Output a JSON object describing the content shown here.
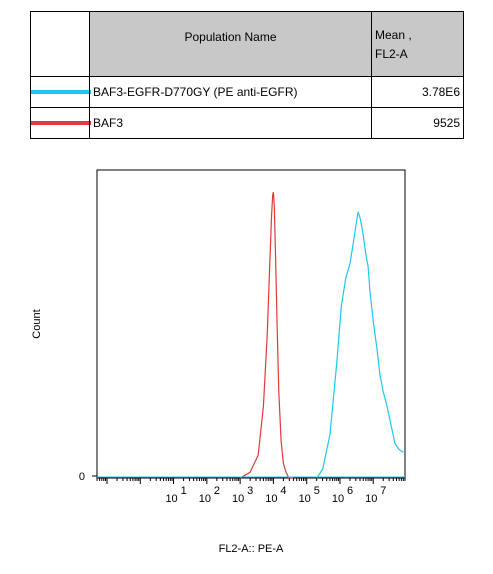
{
  "legend": {
    "header": {
      "name": "Population Name",
      "mean": "Mean ,\nFL2-A"
    },
    "rows": [
      {
        "color": "#1ec8f0",
        "name": "BAF3-EGFR-D770GY (PE anti-EGFR)",
        "mean": "3.78E6"
      },
      {
        "color": "#e03a3a",
        "name": "BAF3",
        "mean": "9525"
      }
    ]
  },
  "chart_data": {
    "type": "line",
    "xlabel": "FL2-A:: PE-A",
    "ylabel": "Count",
    "x_scale": "log10",
    "xlim": [
      0.05,
      90000000
    ],
    "x_ticks": [
      {
        "base": "10",
        "exp": "1",
        "value": 10
      },
      {
        "base": "10",
        "exp": "2",
        "value": 100
      },
      {
        "base": "10",
        "exp": "3",
        "value": 1000
      },
      {
        "base": "10",
        "exp": "4",
        "value": 10000
      },
      {
        "base": "10",
        "exp": "5",
        "value": 100000
      },
      {
        "base": "10",
        "exp": "6",
        "value": 1000000
      },
      {
        "base": "10",
        "exp": "7",
        "value": 10000000
      }
    ],
    "y_ticks": [
      {
        "label": "0",
        "value": 0
      }
    ],
    "ylim": [
      0,
      1.0
    ],
    "series": [
      {
        "name": "BAF3",
        "color": "#e03a3a",
        "x": [
          1000,
          2000,
          3500,
          5000,
          6500,
          7800,
          8800,
          9500,
          10000,
          10600,
          11500,
          12800,
          14500,
          17000,
          20000,
          24000,
          29000,
          40000
        ],
        "y": [
          0,
          0.02,
          0.08,
          0.25,
          0.5,
          0.75,
          0.92,
          0.99,
          1.0,
          0.95,
          0.8,
          0.55,
          0.3,
          0.13,
          0.05,
          0.02,
          0,
          0
        ]
      },
      {
        "name": "BAF3-EGFR-D770GY (PE anti-EGFR)",
        "color": "#1ec8f0",
        "x": [
          200000,
          300000,
          500000,
          800000,
          1100000,
          1500000,
          2000000,
          2500000,
          3000000,
          3500000,
          4000000,
          4500000,
          5000000,
          6000000,
          7000000,
          8000000,
          10000000,
          13000000,
          16000000,
          20000000,
          26000000,
          32000000,
          45000000,
          60000000,
          80000000
        ],
        "y": [
          0,
          0.03,
          0.15,
          0.4,
          0.6,
          0.7,
          0.75,
          0.82,
          0.88,
          0.93,
          0.91,
          0.88,
          0.85,
          0.78,
          0.74,
          0.65,
          0.55,
          0.45,
          0.36,
          0.3,
          0.25,
          0.2,
          0.12,
          0.1,
          0.09
        ]
      }
    ],
    "grid": false
  }
}
